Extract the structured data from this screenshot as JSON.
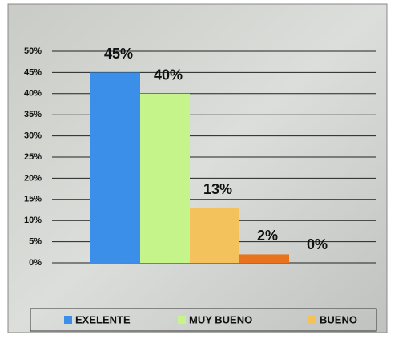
{
  "chart_data": {
    "type": "bar",
    "categories": [
      "EXELENTE",
      "MUY BUENO",
      "BUENO",
      null,
      null
    ],
    "values": [
      45,
      40,
      13,
      2,
      0
    ],
    "value_labels": [
      "45%",
      "40%",
      "13%",
      "2%",
      "0%"
    ],
    "colors": [
      "#3b8fe9",
      "#c4f48a",
      "#f4c25c",
      "#e8731c",
      "#4bacc6"
    ],
    "ylim": [
      0,
      50
    ],
    "yticks": [
      {
        "value": 0,
        "label": "0%"
      },
      {
        "value": 5,
        "label": "5%"
      },
      {
        "value": 10,
        "label": "10%"
      },
      {
        "value": 15,
        "label": "15%"
      },
      {
        "value": 20,
        "label": "20%"
      },
      {
        "value": 25,
        "label": "25%"
      },
      {
        "value": 30,
        "label": "30%"
      },
      {
        "value": 35,
        "label": "35%"
      },
      {
        "value": 40,
        "label": "40%"
      },
      {
        "value": 45,
        "label": "45%"
      },
      {
        "value": 50,
        "label": "50%"
      }
    ],
    "grid": true
  }
}
